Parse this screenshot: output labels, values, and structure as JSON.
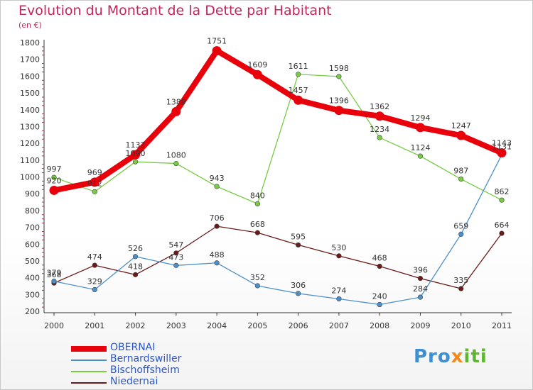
{
  "title": "Evolution du Montant de la Dette par Habitant",
  "subtitle": "(en €)",
  "logo": {
    "text": "Proxiti"
  },
  "chart_data": {
    "type": "line",
    "title": "Evolution du Montant de la Dette par Habitant",
    "subtitle": "(en €)",
    "x": [
      "2000",
      "2001",
      "2002",
      "2003",
      "2004",
      "2005",
      "2006",
      "2007",
      "2008",
      "2009",
      "2010",
      "2011"
    ],
    "ylim": [
      200,
      1800
    ],
    "yticks": [
      200,
      300,
      400,
      500,
      600,
      700,
      800,
      900,
      1000,
      1100,
      1200,
      1300,
      1400,
      1500,
      1600,
      1700,
      1800
    ],
    "grid": false,
    "legend": "bottom-left",
    "series": [
      {
        "name": "OBERNAI",
        "color": "#e8000b",
        "values": [
          920,
          969,
          1132,
          1389,
          1751,
          1609,
          1457,
          1396,
          1362,
          1294,
          1247,
          1143
        ]
      },
      {
        "name": "Bernardswiller",
        "color": "#4d90c9",
        "values": [
          379,
          329,
          526,
          473,
          488,
          352,
          306,
          274,
          240,
          284,
          659,
          1131
        ]
      },
      {
        "name": "Bischoffsheim",
        "color": "#77cc44",
        "values": [
          997,
          912,
          1090,
          1080,
          943,
          840,
          1611,
          1598,
          1234,
          1124,
          987,
          862
        ]
      },
      {
        "name": "Niedernai",
        "color": "#6b1a1a",
        "values": [
          368,
          474,
          418,
          547,
          706,
          668,
          595,
          530,
          468,
          396,
          335,
          664
        ]
      }
    ]
  }
}
